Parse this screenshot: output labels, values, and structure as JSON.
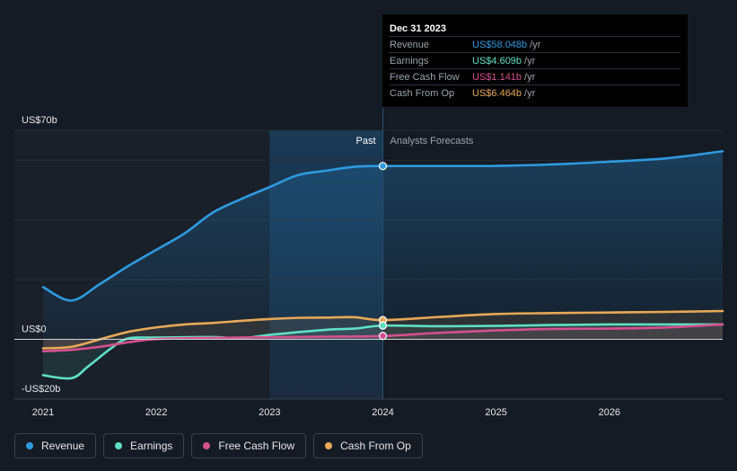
{
  "tooltip": {
    "date": "Dec 31 2023",
    "rows": [
      {
        "label": "Revenue",
        "value": "US$58.048b",
        "unit": "/yr",
        "color": "#2f9ae0"
      },
      {
        "label": "Earnings",
        "value": "US$4.609b",
        "unit": "/yr",
        "color": "#5fe0c4"
      },
      {
        "label": "Free Cash Flow",
        "value": "US$1.141b",
        "unit": "/yr",
        "color": "#d5508e"
      },
      {
        "label": "Cash From Op",
        "value": "US$6.464b",
        "unit": "/yr",
        "color": "#e8a957"
      }
    ]
  },
  "legend": [
    {
      "label": "Revenue",
      "color": "#2f9ae0"
    },
    {
      "label": "Earnings",
      "color": "#5fe0c4"
    },
    {
      "label": "Free Cash Flow",
      "color": "#d5508e"
    },
    {
      "label": "Cash From Op",
      "color": "#e8a957"
    }
  ],
  "chart_data": {
    "type": "line",
    "y_tick_labels": [
      "US$70b",
      "US$0",
      "-US$20b"
    ],
    "y_tick_values": [
      70,
      0,
      -20
    ],
    "ylim": [
      -20,
      70
    ],
    "xlim": [
      2021.0,
      2027.0
    ],
    "x_tick_labels": [
      "2021",
      "2022",
      "2023",
      "2024",
      "2025",
      "2026"
    ],
    "x_tick_values": [
      2021,
      2022,
      2023,
      2024,
      2025,
      2026
    ],
    "divider_x": 2024.0,
    "highlight_range": [
      2023.0,
      2024.0
    ],
    "region_labels": {
      "past": "Past",
      "forecast": "Analysts Forecasts"
    },
    "series": [
      {
        "name": "Revenue",
        "color": "#2f9ae0",
        "fill": true,
        "x": [
          2021.0,
          2021.25,
          2021.5,
          2021.75,
          2022.0,
          2022.25,
          2022.5,
          2022.75,
          2023.0,
          2023.25,
          2023.5,
          2023.75,
          2024.0,
          2024.5,
          2025.0,
          2025.5,
          2026.0,
          2026.5,
          2027.0
        ],
        "y": [
          17.5,
          13.0,
          18.5,
          24.5,
          30.0,
          35.5,
          42.5,
          47.0,
          51.0,
          55.0,
          56.5,
          57.8,
          58.05,
          58.05,
          58.1,
          58.6,
          59.5,
          60.6,
          63.0
        ]
      },
      {
        "name": "Earnings",
        "color": "#5fe0c4",
        "fill": false,
        "x": [
          2021.0,
          2021.25,
          2021.4,
          2021.6,
          2021.75,
          2022.0,
          2022.5,
          2022.75,
          2023.0,
          2023.5,
          2023.75,
          2024.0,
          2024.5,
          2025.0,
          2025.5,
          2026.0,
          2026.5,
          2027.0
        ],
        "y": [
          -12.0,
          -13.0,
          -9.0,
          -3.0,
          0.3,
          0.6,
          0.8,
          0.3,
          1.5,
          3.2,
          3.6,
          4.61,
          4.4,
          4.5,
          4.8,
          5.0,
          5.0,
          5.0
        ]
      },
      {
        "name": "Free Cash Flow",
        "color": "#d5508e",
        "fill": false,
        "x": [
          2021.0,
          2021.25,
          2021.5,
          2021.75,
          2022.0,
          2022.5,
          2023.0,
          2023.5,
          2024.0,
          2024.5,
          2025.0,
          2025.5,
          2026.0,
          2026.5,
          2027.0
        ],
        "y": [
          -4.0,
          -3.5,
          -2.5,
          -1.0,
          0.1,
          0.5,
          0.7,
          0.9,
          1.14,
          2.2,
          3.0,
          3.5,
          3.6,
          4.0,
          5.0
        ]
      },
      {
        "name": "Cash From Op",
        "color": "#e8a957",
        "fill": false,
        "x": [
          2021.0,
          2021.25,
          2021.5,
          2021.75,
          2022.0,
          2022.25,
          2022.5,
          2022.75,
          2023.0,
          2023.25,
          2023.5,
          2023.75,
          2024.0,
          2024.5,
          2025.0,
          2025.5,
          2026.0,
          2026.5,
          2027.0
        ],
        "y": [
          -3.0,
          -2.5,
          0.0,
          2.5,
          4.0,
          5.0,
          5.5,
          6.2,
          6.8,
          7.2,
          7.3,
          7.4,
          6.46,
          7.5,
          8.5,
          8.8,
          9.0,
          9.2,
          9.5
        ]
      }
    ]
  }
}
